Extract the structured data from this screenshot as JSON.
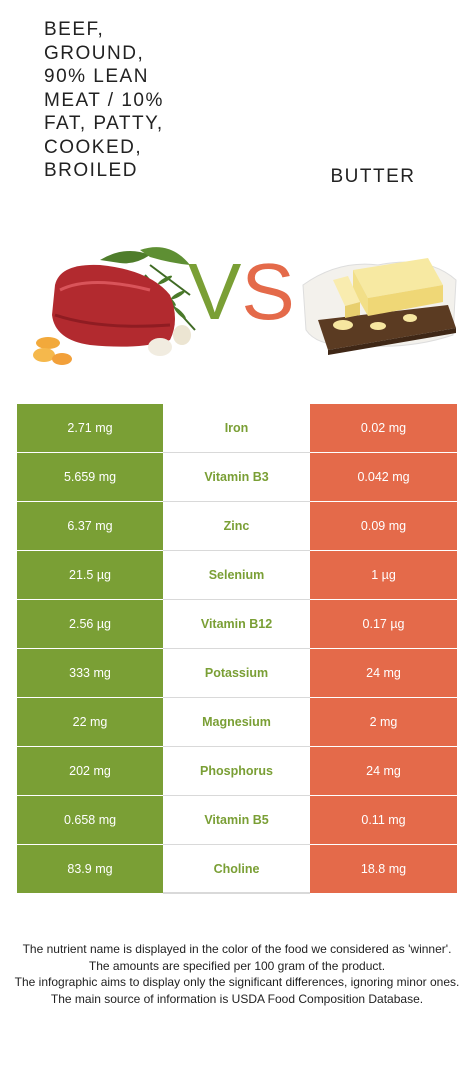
{
  "left_food": {
    "title": "BEEF,\nGROUND,\n90% LEAN\nMEAT / 10%\nFAT, PATTY,\nCOOKED,\nBROILED",
    "color": "#7a9f35"
  },
  "right_food": {
    "title": "BUTTER",
    "color": "#e46a4a"
  },
  "vs": {
    "v": "V",
    "s": "S"
  },
  "chart_data": {
    "type": "table",
    "columns": [
      "Beef, ground, 90% lean meat / 10% fat, patty, cooked, broiled",
      "Nutrient",
      "Butter"
    ],
    "rows": [
      {
        "left": "2.71 mg",
        "nutrient": "Iron",
        "right": "0.02 mg"
      },
      {
        "left": "5.659 mg",
        "nutrient": "Vitamin B3",
        "right": "0.042 mg"
      },
      {
        "left": "6.37 mg",
        "nutrient": "Zinc",
        "right": "0.09 mg"
      },
      {
        "left": "21.5 µg",
        "nutrient": "Selenium",
        "right": "1 µg"
      },
      {
        "left": "2.56 µg",
        "nutrient": "Vitamin B12",
        "right": "0.17 µg"
      },
      {
        "left": "333 mg",
        "nutrient": "Potassium",
        "right": "24 mg"
      },
      {
        "left": "22 mg",
        "nutrient": "Magnesium",
        "right": "2 mg"
      },
      {
        "left": "202 mg",
        "nutrient": "Phosphorus",
        "right": "24 mg"
      },
      {
        "left": "0.658 mg",
        "nutrient": "Vitamin B5",
        "right": "0.11 mg"
      },
      {
        "left": "83.9 mg",
        "nutrient": "Choline",
        "right": "18.8 mg"
      }
    ]
  },
  "footer": {
    "lines": [
      "The nutrient name is displayed in the color of the food we considered as 'winner'.",
      "The amounts are specified per 100 gram of the product.",
      "The infographic aims to display only the significant differences, ignoring minor ones.",
      "The main source of information is USDA Food Composition Database."
    ]
  }
}
